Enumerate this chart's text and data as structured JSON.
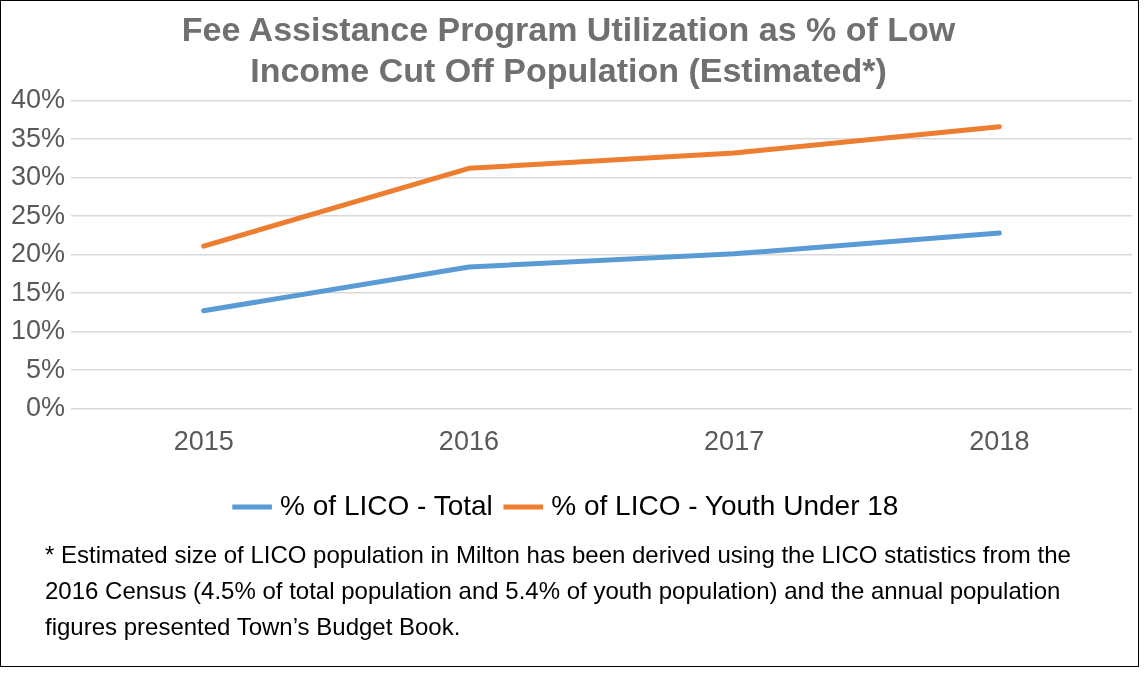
{
  "chart_data": {
    "type": "line",
    "title": "Fee Assistance Program Utilization as % of Low Income Cut Off Population (Estimated*)",
    "categories": [
      "2015",
      "2016",
      "2017",
      "2018"
    ],
    "series": [
      {
        "name": "% of LICO - Total",
        "color": "#5b9bd5",
        "values": [
          12.7,
          18.4,
          20.1,
          22.8
        ]
      },
      {
        "name": "% of LICO - Youth Under 18",
        "color": "#ed7d31",
        "values": [
          21.1,
          31.2,
          33.2,
          36.6
        ]
      }
    ],
    "ylim": [
      0,
      40
    ],
    "yticks": [
      {
        "value": 0,
        "label": "0%"
      },
      {
        "value": 5,
        "label": "5%"
      },
      {
        "value": 10,
        "label": "10%"
      },
      {
        "value": 15,
        "label": "15%"
      },
      {
        "value": 20,
        "label": "20%"
      },
      {
        "value": 25,
        "label": "25%"
      },
      {
        "value": 30,
        "label": "30%"
      },
      {
        "value": 35,
        "label": "35%"
      },
      {
        "value": 40,
        "label": "40%"
      }
    ],
    "grid": "y",
    "legend": "bottom",
    "marker": "none",
    "line_style": "solid",
    "annotations": [
      "* Estimated size of LICO population in Milton has been derived using the LICO statistics from the 2016 Census (4.5% of total population and 5.4% of youth population) and the annual population figures presented Town’s Budget Book."
    ]
  }
}
